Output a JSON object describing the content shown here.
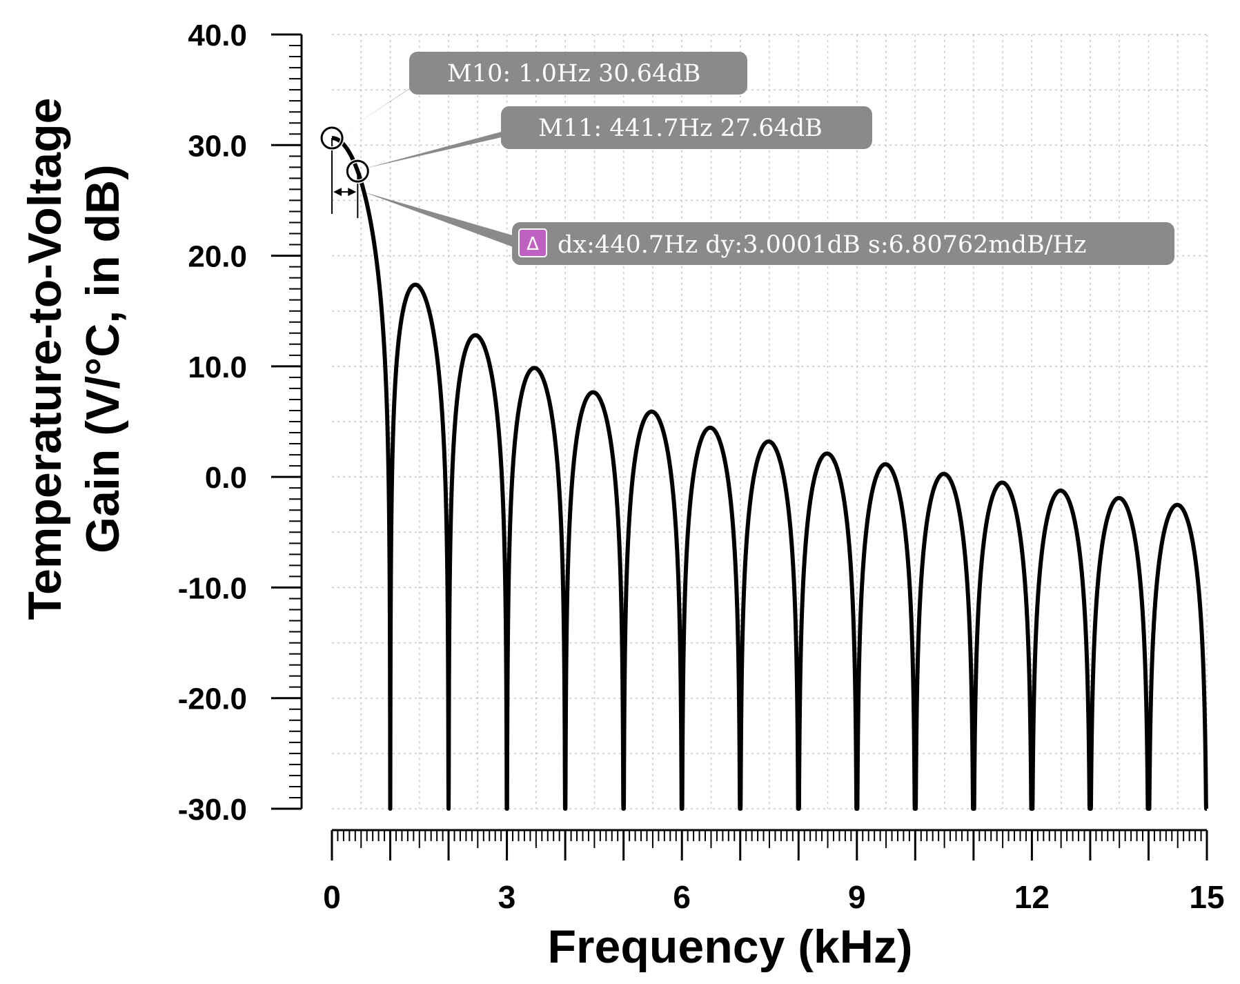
{
  "chart_data": {
    "type": "line",
    "title": "",
    "xlabel": "Frequency (kHz)",
    "ylabel_line1": "Temperature-to-Voltage",
    "ylabel_line2": "Gain (V/°C, in dB)",
    "xlim": [
      0,
      15
    ],
    "ylim": [
      -30,
      40
    ],
    "x_ticks": [
      0,
      3,
      6,
      9,
      12,
      15
    ],
    "x_tick_labels": [
      "0",
      "3",
      "6",
      "9",
      "12",
      "15"
    ],
    "y_ticks": [
      40,
      30,
      20,
      10,
      0,
      -10,
      -20,
      -30
    ],
    "y_tick_labels": [
      "40.0",
      "30.0",
      "20.0",
      "10.0",
      "0.0",
      "-10.0",
      "-20.0",
      "-30.0"
    ],
    "grid": true,
    "series": [
      {
        "name": "gain",
        "description": "sinc-shaped response with nulls every 1 kHz",
        "dc_gain_db": 30.64,
        "null_spacing_khz": 1.0,
        "x_range_khz": [
          0,
          15
        ],
        "peaks": [
          {
            "x": 0.0,
            "y": 30.64
          },
          {
            "x": 1.43,
            "y": 17.3
          },
          {
            "x": 2.46,
            "y": 12.6
          },
          {
            "x": 3.47,
            "y": 9.7
          },
          {
            "x": 4.48,
            "y": 7.5
          },
          {
            "x": 5.48,
            "y": 5.8
          },
          {
            "x": 6.49,
            "y": 4.4
          },
          {
            "x": 7.49,
            "y": 3.1
          },
          {
            "x": 8.49,
            "y": 2.0
          },
          {
            "x": 9.49,
            "y": 1.1
          },
          {
            "x": 10.49,
            "y": 0.2
          },
          {
            "x": 11.49,
            "y": -0.6
          },
          {
            "x": 12.49,
            "y": -1.3
          },
          {
            "x": 13.49,
            "y": -1.9
          },
          {
            "x": 14.49,
            "y": -2.5
          }
        ]
      }
    ],
    "markers": [
      {
        "id": "M10",
        "x_khz": 0.001,
        "y_db": 30.64,
        "label": "M10: 1.0Hz 30.64dB"
      },
      {
        "id": "M11",
        "x_khz": 0.4417,
        "y_db": 27.64,
        "label": "M11: 441.7Hz 27.64dB"
      }
    ],
    "delta": {
      "icon": "Δ",
      "label": "dx:440.7Hz dy:3.0001dB s:6.80762mdB/Hz"
    }
  },
  "colors": {
    "curve": "#000000",
    "label_box": "#8a8a8a",
    "label_text": "#ffffff",
    "delta_icon_bg": "#c060c0"
  }
}
